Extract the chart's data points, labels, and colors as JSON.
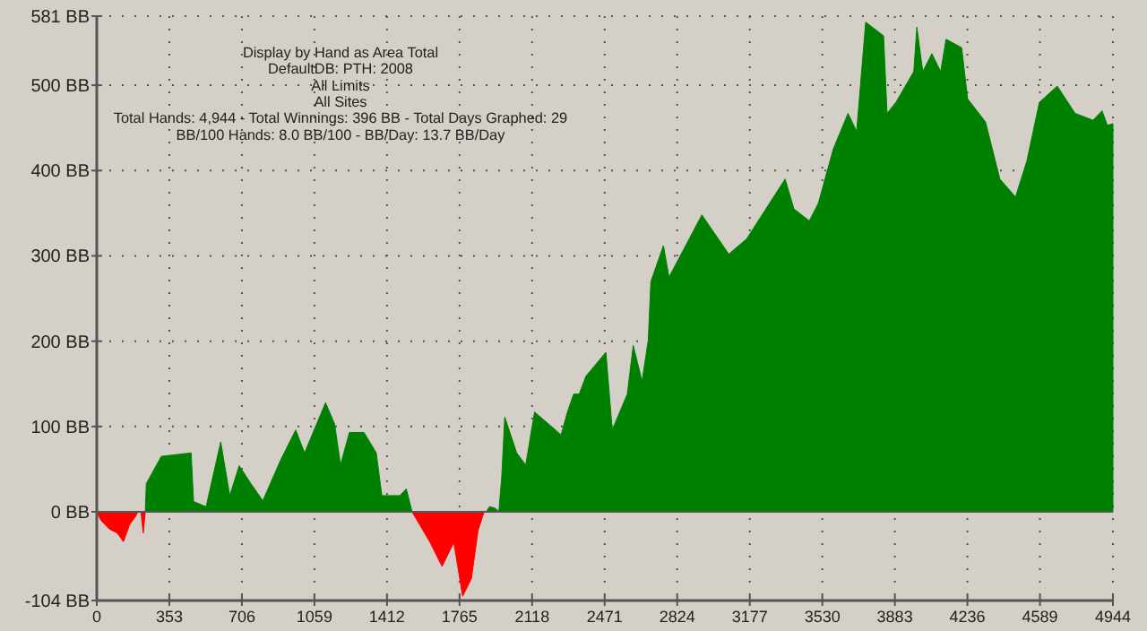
{
  "chart_data": {
    "type": "area",
    "title": "Display by Hand as Area Total",
    "annotations": [
      "DefaultDB: PTH: 2008",
      "All Limits",
      "All Sites",
      "Total Hands: 4,944 - Total Winnings: 396 BB - Total Days Graphed: 29",
      "BB/100 Hands: 8.0 BB/100 - BB/Day: 13.7 BB/Day"
    ],
    "series": [
      {
        "color": "#ff0000",
        "x": [
          0,
          20,
          60,
          100,
          130,
          160,
          190,
          200,
          215,
          226,
          236
        ],
        "values": [
          0,
          -10,
          -20,
          -25,
          -35,
          -15,
          -5,
          0,
          0,
          -25,
          0
        ]
      },
      {
        "color": "#ff0000",
        "x": [
          1534,
          1622,
          1680,
          1737,
          1780,
          1823,
          1855,
          1883,
          1895
        ],
        "values": [
          0,
          -36,
          -64,
          -36,
          -99,
          -78,
          -22,
          -1,
          0
        ]
      },
      {
        "color": "#008000",
        "x": [
          236,
          241,
          314,
          459,
          471,
          532,
          603,
          647,
          693,
          750,
          808,
          895,
          968,
          1011,
          1113,
          1157,
          1186,
          1229,
          1300,
          1360,
          1387,
          1475,
          1506,
          1534
        ],
        "values": [
          0,
          33,
          65,
          69,
          12,
          6,
          82,
          19,
          54,
          33,
          13,
          61,
          96,
          69,
          128,
          103,
          55,
          93,
          93,
          69,
          19,
          19,
          27,
          0
        ]
      },
      {
        "color": "#008000",
        "x": [
          1895,
          1911,
          1940,
          1956,
          1970,
          1985,
          2043,
          2087,
          2130,
          2232,
          2259,
          2290,
          2320,
          2347,
          2380,
          2477,
          2508,
          2581,
          2610,
          2653,
          2683,
          2696,
          2757,
          2784,
          2944,
          3075,
          3162,
          3218,
          3349,
          3392,
          3467,
          3511,
          3583,
          3655,
          3697,
          3741,
          3828,
          3845,
          3888,
          3975,
          3990,
          4019,
          4063,
          4106,
          4132,
          4208,
          4237,
          4324,
          4394,
          4470,
          4525,
          4586,
          4673,
          4760,
          4847,
          4891,
          4917,
          4944
        ],
        "values": [
          0,
          6,
          4,
          0,
          40,
          111,
          69,
          55,
          117,
          96,
          90,
          117,
          138,
          138,
          159,
          187,
          96,
          138,
          195,
          153,
          201,
          270,
          312,
          275,
          348,
          302,
          320,
          341,
          390,
          355,
          341,
          362,
          425,
          467,
          446,
          574,
          558,
          467,
          480,
          516,
          568,
          516,
          537,
          516,
          554,
          544,
          484,
          457,
          390,
          369,
          411,
          480,
          499,
          467,
          459,
          470,
          453,
          455
        ]
      }
    ],
    "xlim": [
      0,
      4944
    ],
    "xticks": [
      0,
      353,
      706,
      1059,
      1412,
      1765,
      2118,
      2471,
      2824,
      3177,
      3530,
      3883,
      4236,
      4589,
      4944
    ],
    "ylim": [
      -104,
      581
    ],
    "yticks": [
      {
        "value": -104,
        "label": "-104 BB"
      },
      {
        "value": 0,
        "label": "0 BB"
      },
      {
        "value": 100,
        "label": "100 BB"
      },
      {
        "value": 200,
        "label": "200 BB"
      },
      {
        "value": 300,
        "label": "300 BB"
      },
      {
        "value": 400,
        "label": "400 BB"
      },
      {
        "value": 500,
        "label": "500 BB"
      },
      {
        "value": 581,
        "label": "581 BB"
      }
    ],
    "grid": true
  }
}
